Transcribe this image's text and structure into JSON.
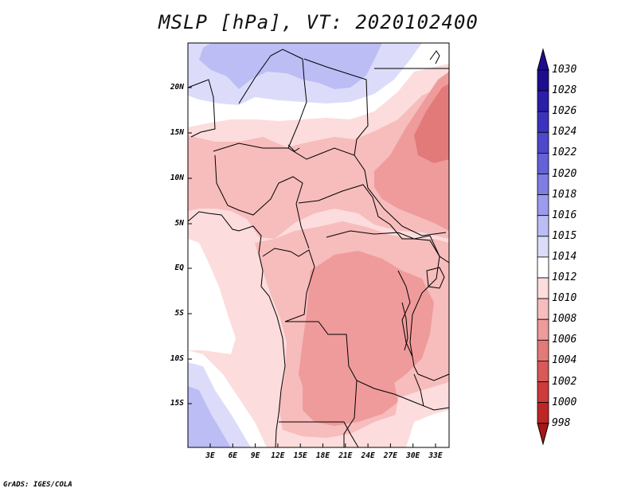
{
  "title": "MSLP [hPa], VT: 2020102400",
  "credit": "GrADS: IGES/COLA",
  "lat_labels": [
    "20N",
    "15N",
    "10N",
    "5N",
    "EQ",
    "5S",
    "10S",
    "15S"
  ],
  "lon_labels": [
    "3E",
    "6E",
    "9E",
    "12E",
    "15E",
    "18E",
    "21E",
    "24E",
    "27E",
    "30E",
    "33E"
  ],
  "colorbar": {
    "labels": [
      "1030",
      "1028",
      "1026",
      "1024",
      "1022",
      "1020",
      "1018",
      "1016",
      "1015",
      "1014",
      "1012",
      "1010",
      "1008",
      "1006",
      "1004",
      "1002",
      "1000",
      "998"
    ],
    "colors": [
      "#1c0e8f",
      "#2a1fa8",
      "#3b33bf",
      "#4d48cc",
      "#6462d9",
      "#7e7ee3",
      "#9c9cec",
      "#bcbdf4",
      "#dcdcfa",
      "#ffffff",
      "#fcdcdc",
      "#f7bcbc",
      "#ef9b9b",
      "#e27a7a",
      "#d95858",
      "#cf3a3a",
      "#bf2525",
      "#a81616"
    ]
  },
  "field_colors": {
    "p1016": "#bcbdf4",
    "p1015": "#dcdcfa",
    "p1014": "#ffffff",
    "p1012": "#fcdcdc",
    "p1010": "#f7bcbc",
    "p1008": "#ef9b9b",
    "p1006": "#e27a7a"
  }
}
